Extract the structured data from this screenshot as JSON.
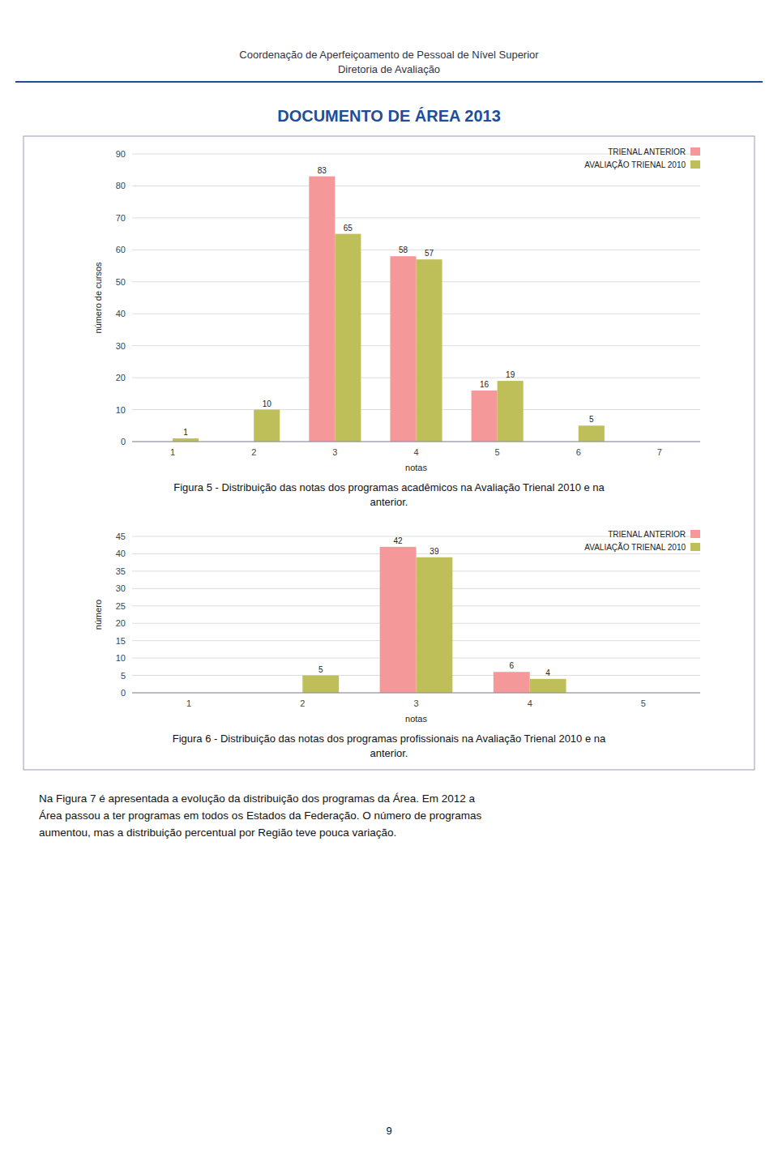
{
  "page": {
    "header": [
      "Coordenação de Aperfeiçoamento de Pessoal de Nível Superior",
      "Diretoria de Avaliação"
    ],
    "title": "DOCUMENTO DE ÁREA 2013",
    "captions": [
      [
        "Figura 5 - Distribuição das notas dos programas acadêmicos na Avaliação Trienal 2010 e na",
        "anterior."
      ],
      [
        "Figura 6 - Distribuição das notas dos programas profissionais na Avaliação Trienal 2010 e na",
        "anterior."
      ]
    ],
    "body": [
      "Na Figura 7 é apresentada a evolução da distribuição dos programas da Área. Em 2012 a",
      "Área passou a ter programas em todos os Estados da Federação. O número de programas",
      "aumentou, mas a distribuição percentual por Região teve pouca variação."
    ],
    "page_number": "9"
  },
  "chart_data": [
    {
      "type": "bar",
      "categories": [
        1,
        2,
        3,
        4,
        5,
        6,
        7
      ],
      "series": [
        {
          "name": "TRIENAL ANTERIOR",
          "color": "#F4989A",
          "values": [
            0,
            0,
            83,
            58,
            16,
            0,
            0
          ],
          "value_labels": [
            null,
            null,
            "83",
            "58",
            "16",
            null,
            null
          ]
        },
        {
          "name": "AVALIAÇÃO TRIENAL 2010",
          "color": "#BFBF5A",
          "values": [
            1,
            10,
            65,
            57,
            19,
            5,
            0
          ],
          "value_labels": [
            "1",
            "10",
            "65",
            "57",
            "19",
            "5",
            null
          ]
        }
      ],
      "xlabel": "notas",
      "ylabel": "número de cursos",
      "ylim": [
        0,
        90
      ],
      "yticks": [
        0,
        10,
        20,
        30,
        40,
        50,
        60,
        70,
        80,
        90
      ],
      "grid": true,
      "legend": "upper right",
      "data_labels": true
    },
    {
      "type": "bar",
      "categories": [
        1,
        2,
        3,
        4,
        5
      ],
      "series": [
        {
          "name": "TRIENAL ANTERIOR",
          "color": "#F4989A",
          "values": [
            0,
            0,
            42,
            6,
            0
          ],
          "value_labels": [
            null,
            null,
            "42",
            "6",
            null
          ]
        },
        {
          "name": "AVALIAÇÃO TRIENAL 2010",
          "color": "#BFBF5A",
          "values": [
            0,
            5,
            39,
            4,
            0
          ],
          "value_labels": [
            null,
            "5",
            "39",
            "4",
            null
          ]
        }
      ],
      "xlabel": "notas",
      "ylabel": "número",
      "ylim": [
        0,
        45
      ],
      "yticks": [
        0,
        5,
        10,
        15,
        20,
        25,
        30,
        35,
        40,
        45
      ],
      "grid": true,
      "legend": "upper right",
      "data_labels": true
    }
  ]
}
